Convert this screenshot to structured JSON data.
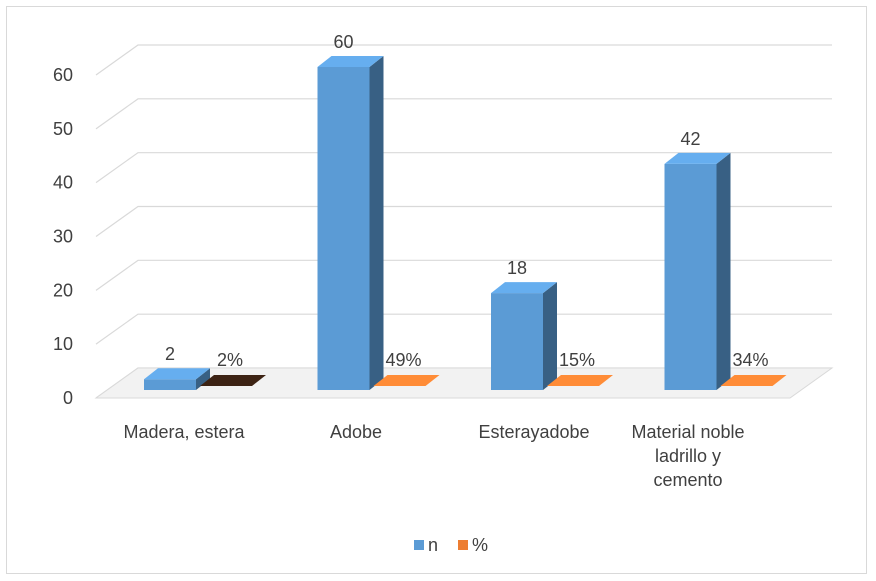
{
  "chart_data": {
    "type": "bar",
    "title": "",
    "xlabel": "",
    "ylabel": "",
    "categories": [
      [
        "Madera, estera"
      ],
      [
        "Adobe"
      ],
      [
        "Esterayadobe"
      ],
      [
        "Material noble",
        "ladrillo y",
        "cemento"
      ]
    ],
    "series": [
      {
        "name": "n",
        "values": [
          2,
          60,
          18,
          42
        ],
        "labels": [
          "2",
          "60",
          "18",
          "42"
        ],
        "color": "#5B9BD5"
      },
      {
        "name": "%",
        "values": [
          2,
          49,
          15,
          34
        ],
        "labels": [
          "2%",
          "49%",
          "15%",
          "34%"
        ],
        "color": "#ED7D31",
        "plot_values": [
          0,
          0,
          0,
          0
        ]
      }
    ],
    "ylim": [
      0,
      60
    ],
    "yticks": [
      0,
      10,
      20,
      30,
      40,
      50,
      60
    ],
    "grid": true,
    "legend": "bottom",
    "style": "3d-clustered-column"
  }
}
